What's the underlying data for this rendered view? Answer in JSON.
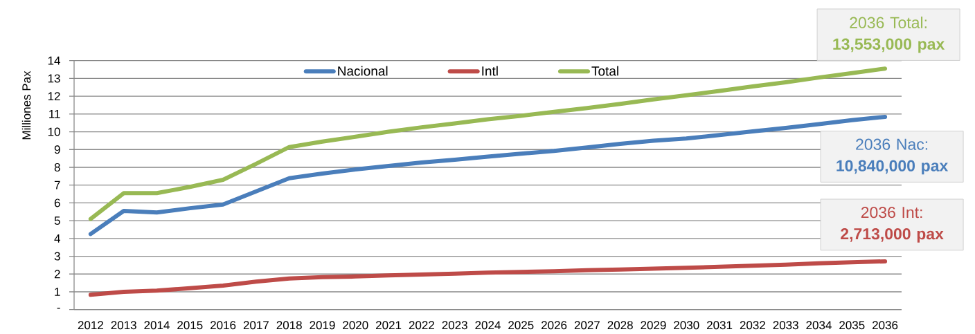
{
  "chart_data": {
    "type": "line",
    "ylabel": "Milliones Pax",
    "categories": [
      "2012",
      "2013",
      "2014",
      "2015",
      "2016",
      "2017",
      "2018",
      "2019",
      "2020",
      "2021",
      "2022",
      "2023",
      "2024",
      "2025",
      "2026",
      "2027",
      "2028",
      "2029",
      "2030",
      "2031",
      "2032",
      "2033",
      "2034",
      "2035",
      "2036"
    ],
    "series": [
      {
        "name": "Nacional",
        "color": "#4a7ebb",
        "values": [
          4.25,
          5.55,
          5.46,
          5.7,
          5.91,
          6.65,
          7.39,
          7.65,
          7.88,
          8.08,
          8.27,
          8.43,
          8.6,
          8.77,
          8.92,
          9.12,
          9.32,
          9.5,
          9.62,
          9.82,
          10.02,
          10.22,
          10.43,
          10.65,
          10.84
        ]
      },
      {
        "name": "Intl",
        "color": "#be4b48",
        "values": [
          0.83,
          1.0,
          1.07,
          1.2,
          1.35,
          1.57,
          1.75,
          1.83,
          1.86,
          1.92,
          1.97,
          2.02,
          2.08,
          2.12,
          2.16,
          2.21,
          2.25,
          2.3,
          2.35,
          2.41,
          2.47,
          2.53,
          2.6,
          2.66,
          2.713
        ]
      },
      {
        "name": "Total",
        "color": "#98b954",
        "values": [
          5.1,
          6.55,
          6.55,
          6.9,
          7.3,
          8.2,
          9.14,
          9.45,
          9.72,
          10.0,
          10.25,
          10.47,
          10.7,
          10.9,
          11.12,
          11.33,
          11.57,
          11.82,
          12.05,
          12.3,
          12.55,
          12.78,
          13.05,
          13.3,
          13.553
        ]
      }
    ],
    "ylim": [
      0,
      14
    ],
    "yticks": [
      {
        "value": 0,
        "label": "-"
      },
      1,
      2,
      3,
      4,
      5,
      6,
      7,
      8,
      9,
      10,
      11,
      12,
      13,
      14
    ],
    "grid": "y",
    "legend": "top",
    "marker": "none",
    "line_style": "solid",
    "annotations": [
      {
        "text": "2036 Total: **13,553,000  pax**",
        "x": "2036",
        "y": 13.553
      },
      {
        "text": "2036 Nac: **10,840,000 pax**",
        "x": "2036",
        "y": 10.84
      },
      {
        "text": "2036 Int: **2,713,000 pax**",
        "x": "2036",
        "y": 2.713
      }
    ]
  }
}
